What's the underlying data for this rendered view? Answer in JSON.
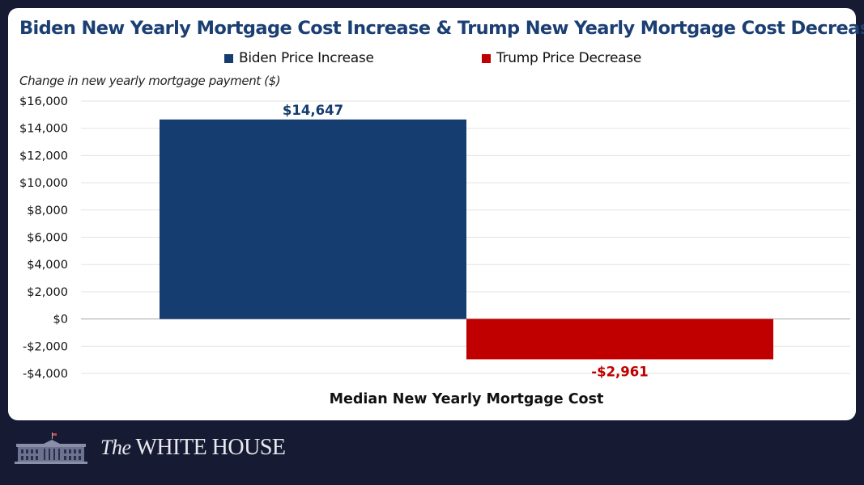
{
  "chart_data": {
    "type": "bar",
    "title": "Biden New Yearly Mortgage Cost Increase & Trump New Yearly Mortgage Cost Decrease",
    "ylabel": "Change in new yearly mortgage payment ($)",
    "xlabel": "Median New Yearly Mortgage Cost",
    "categories": [
      "Median New Yearly Mortgage Cost"
    ],
    "series": [
      {
        "name": "Biden Price Increase",
        "values": [
          14647
        ],
        "label": "$14,647",
        "color": "#163d6f"
      },
      {
        "name": "Trump Price Decrease",
        "values": [
          -2961
        ],
        "label": "-$2,961",
        "color": "#c00000"
      }
    ],
    "ylim": [
      -4000,
      16000
    ],
    "yticks": [
      16000,
      14000,
      12000,
      10000,
      8000,
      6000,
      4000,
      2000,
      0,
      -2000,
      -4000
    ],
    "ytick_labels": [
      "$16,000",
      "$14,000",
      "$12,000",
      "$10,000",
      "$8,000",
      "$6,000",
      "$4,000",
      "$2,000",
      "$0",
      "-$2,000",
      "-$4,000"
    ],
    "grid": true,
    "legend": "top-center"
  },
  "footer": {
    "logo_prefix": "The",
    "logo_name": "WHITE HOUSE"
  },
  "colors": {
    "background": "#161b33",
    "title": "#1b3f73"
  }
}
